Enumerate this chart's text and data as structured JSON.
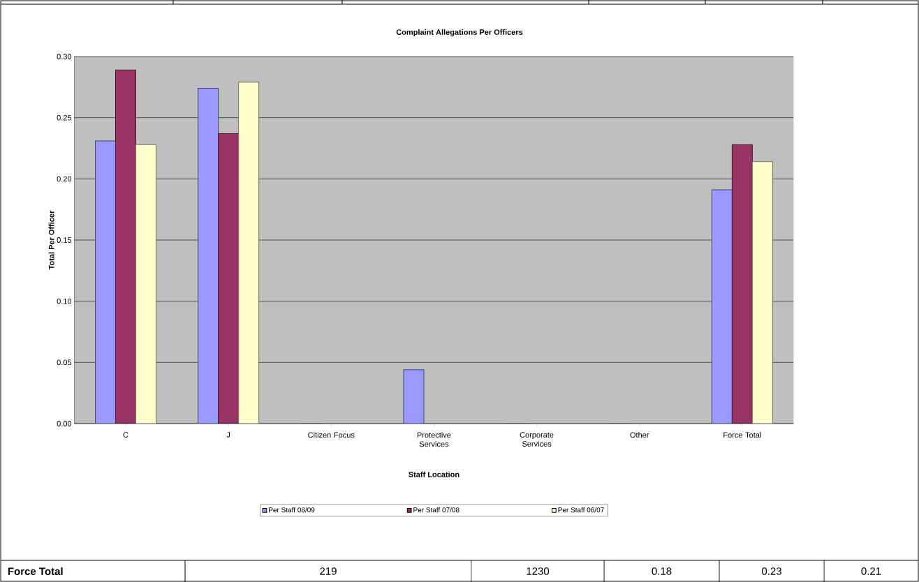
{
  "chart_data": {
    "type": "bar",
    "title": "Complaint Allegations Per Officers",
    "xlabel": "Staff Location",
    "ylabel": "Total Per Officer",
    "categories": [
      "C",
      "J",
      "Citizen Focus",
      "Protective Services",
      "Corporate Services",
      "Other",
      "Force Total"
    ],
    "series": [
      {
        "name": "Per Staff 08/09",
        "color": "#9999ff",
        "values": [
          0.231,
          0.274,
          0,
          0.044,
          0,
          0,
          0.191
        ]
      },
      {
        "name": "Per Staff 07/08",
        "color": "#993366",
        "values": [
          0.289,
          0.237,
          null,
          null,
          null,
          null,
          0.228
        ]
      },
      {
        "name": "Per Staff 06/07",
        "color": "#ffffcc",
        "values": [
          0.228,
          0.279,
          null,
          null,
          null,
          null,
          0.214
        ]
      }
    ],
    "ylim": [
      0,
      0.3
    ],
    "yticks": [
      {
        "value": 0,
        "label": "0.00"
      },
      {
        "value": 0.05,
        "label": "0.05"
      },
      {
        "value": 0.1,
        "label": "0.10"
      },
      {
        "value": 0.15,
        "label": "0.15"
      },
      {
        "value": 0.2,
        "label": "0.20"
      },
      {
        "value": 0.25,
        "label": "0.25"
      },
      {
        "value": 0.3,
        "label": "0.30"
      }
    ],
    "grid": "y",
    "legend": "bottom",
    "annotations": [
      "Force Total",
      "219",
      "1230",
      "0.18",
      "0.23",
      "0.21"
    ]
  }
}
